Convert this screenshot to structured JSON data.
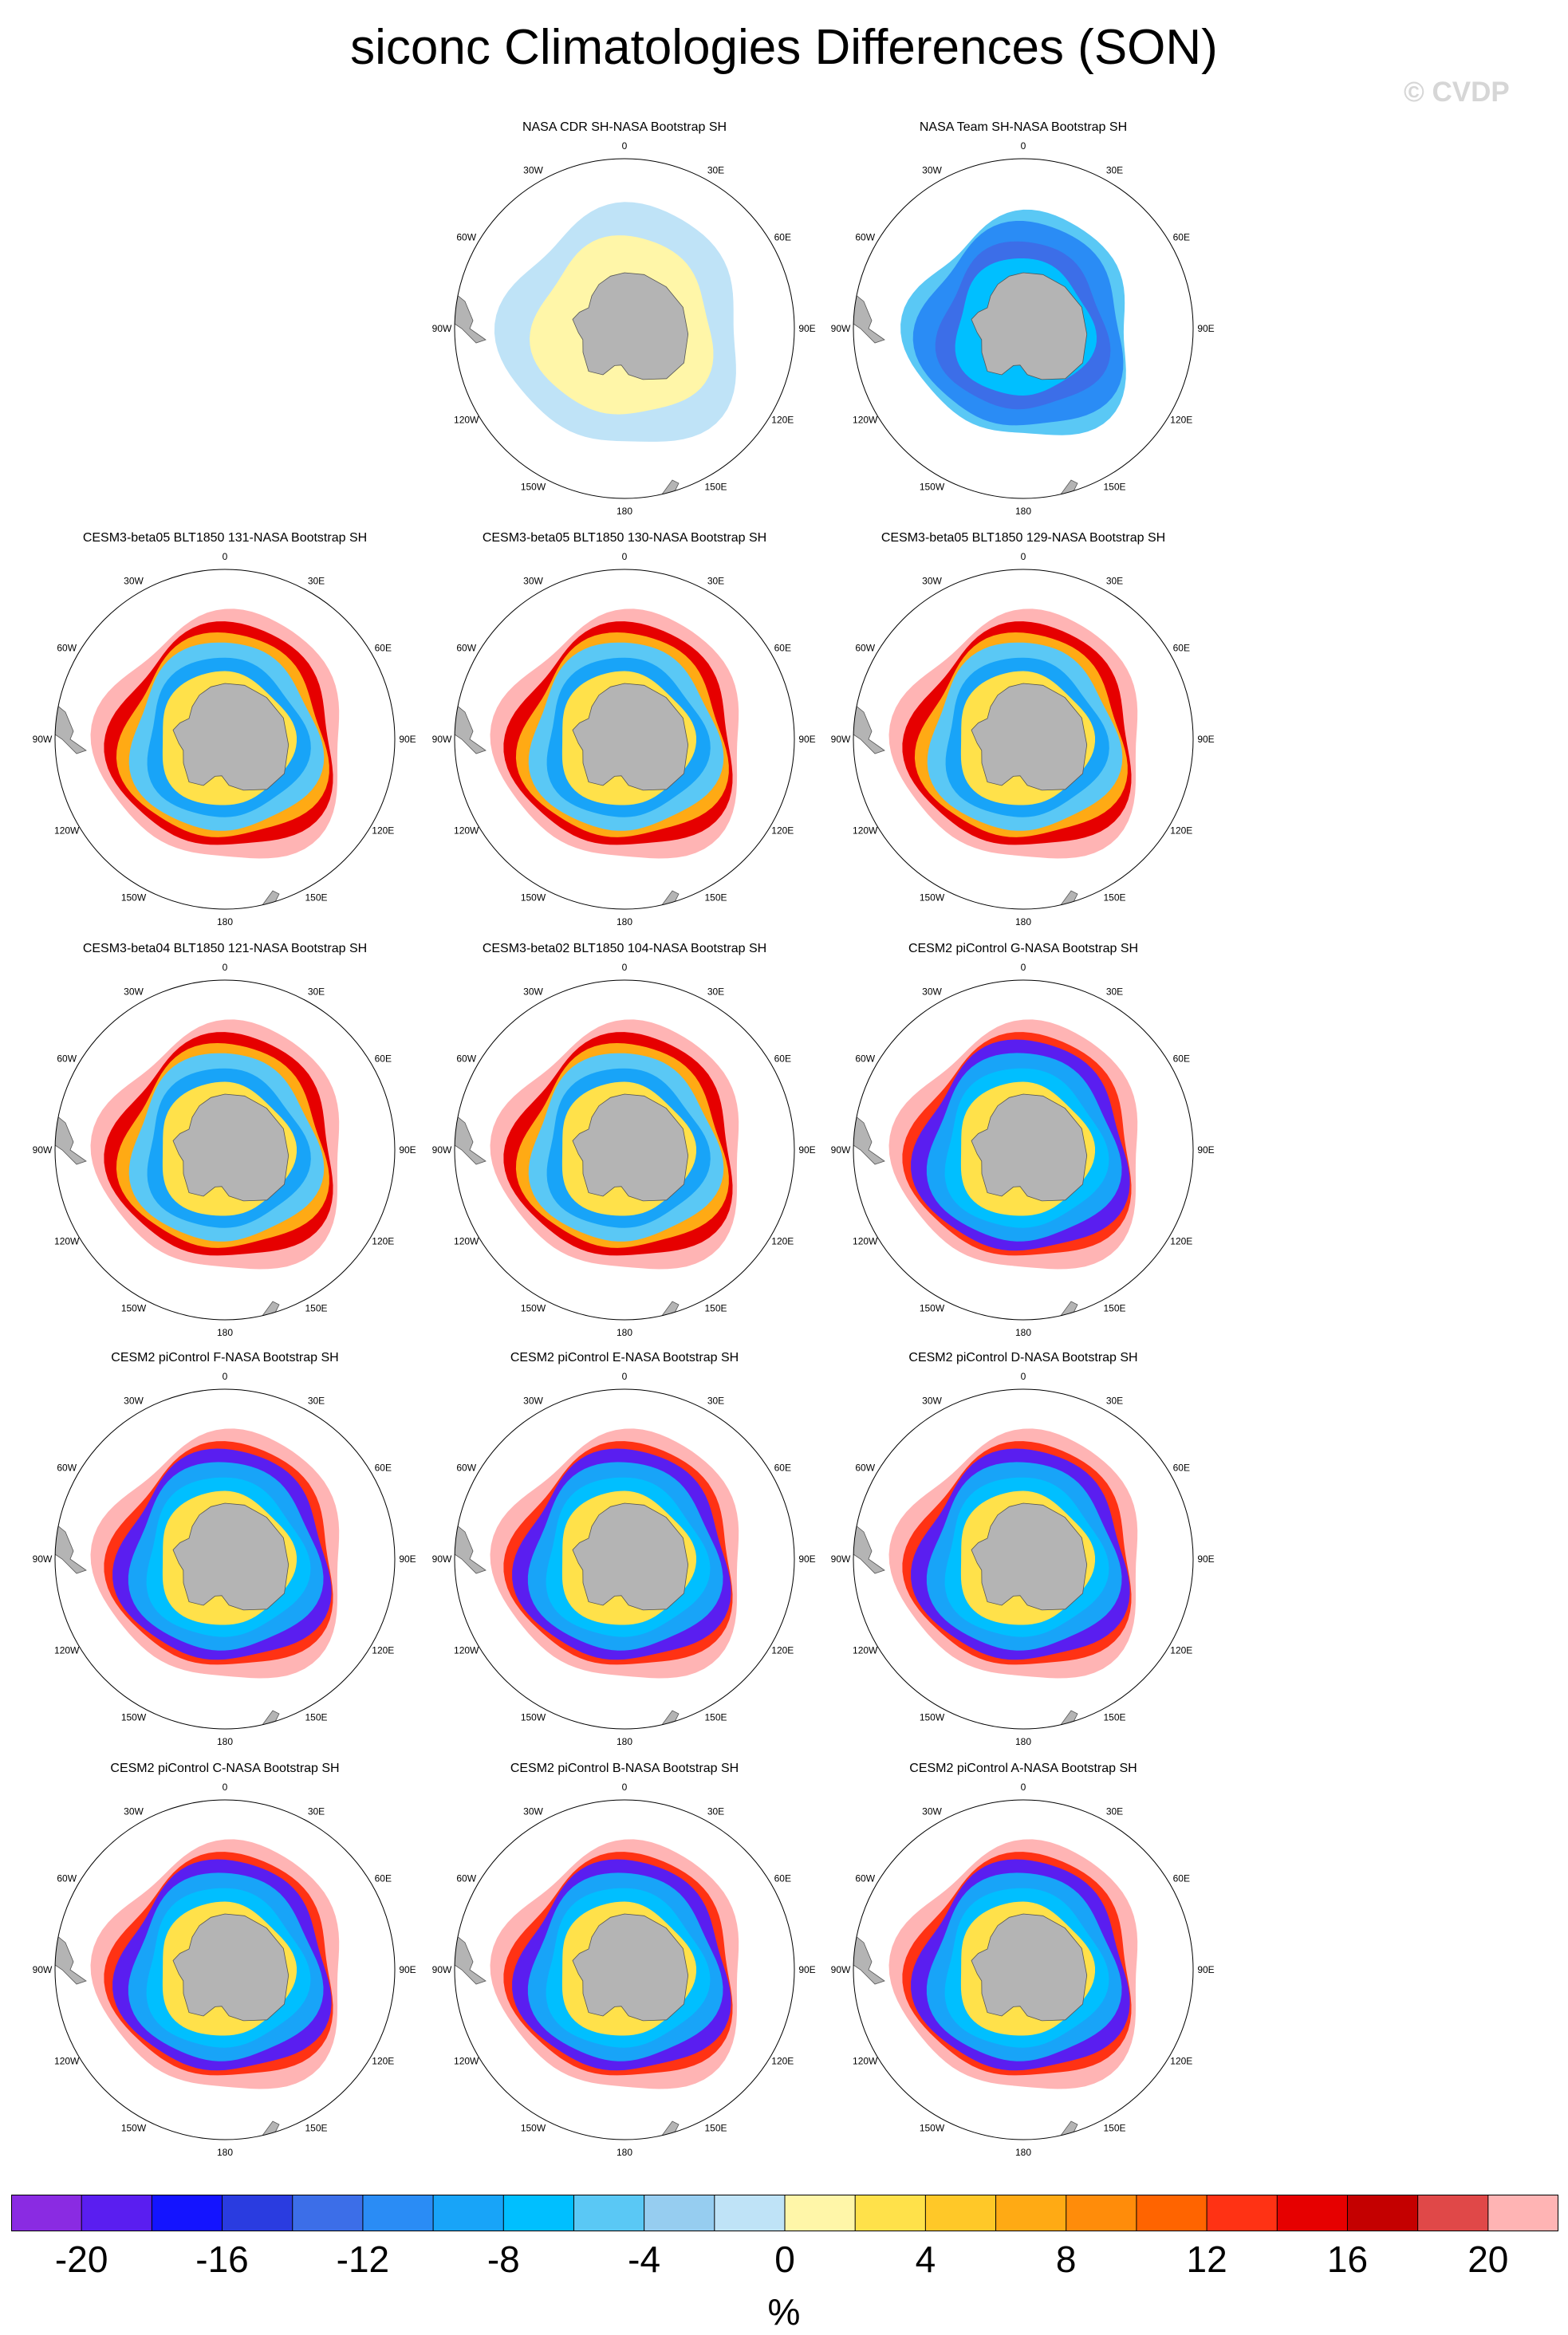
{
  "title": "siconc Climatologies Differences (SON)",
  "watermark": "© CVDP",
  "lon_labels": [
    "0",
    "30E",
    "60E",
    "90E",
    "120E",
    "150E",
    "180",
    "150W",
    "120W",
    "90W",
    "60W",
    "30W"
  ],
  "panels": [
    {
      "title": "NASA CDR SH-NASA Bootstrap SH",
      "pattern": "cdr"
    },
    {
      "title": "NASA Team SH-NASA Bootstrap SH",
      "pattern": "team"
    },
    {
      "title": "CESM3-beta05 BLT1850 131-NASA Bootstrap SH",
      "pattern": "beta"
    },
    {
      "title": "CESM3-beta05 BLT1850 130-NASA Bootstrap SH",
      "pattern": "beta"
    },
    {
      "title": "CESM3-beta05 BLT1850 129-NASA Bootstrap SH",
      "pattern": "beta"
    },
    {
      "title": "CESM3-beta04 BLT1850 121-NASA Bootstrap SH",
      "pattern": "beta"
    },
    {
      "title": "CESM3-beta02 BLT1850 104-NASA Bootstrap SH",
      "pattern": "beta"
    },
    {
      "title": "CESM2 piControl G-NASA Bootstrap SH",
      "pattern": "cesm2"
    },
    {
      "title": "CESM2 piControl F-NASA Bootstrap SH",
      "pattern": "cesm2"
    },
    {
      "title": "CESM2 piControl E-NASA Bootstrap SH",
      "pattern": "cesm2"
    },
    {
      "title": "CESM2 piControl D-NASA Bootstrap SH",
      "pattern": "cesm2"
    },
    {
      "title": "CESM2 piControl C-NASA Bootstrap SH",
      "pattern": "cesm2"
    },
    {
      "title": "CESM2 piControl B-NASA Bootstrap SH",
      "pattern": "cesm2"
    },
    {
      "title": "CESM2 piControl A-NASA Bootstrap SH",
      "pattern": "cesm2"
    }
  ],
  "colorbar": {
    "levels": [
      -20,
      -18,
      -16,
      -14,
      -12,
      -10,
      -8,
      -6,
      -4,
      -2,
      0,
      2,
      4,
      6,
      8,
      10,
      12,
      14,
      16,
      18,
      20
    ],
    "colors": [
      "#8a2be2",
      "#5a1ef0",
      "#1414ff",
      "#2a3ce0",
      "#3c6ee8",
      "#2a8cf5",
      "#18a4f8",
      "#00bfff",
      "#5ac8f5",
      "#96cdf0",
      "#bfe3f7",
      "#fff6a8",
      "#ffe14a",
      "#ffc828",
      "#ffaa14",
      "#ff8c0a",
      "#ff6400",
      "#ff3214",
      "#e60000",
      "#c40000",
      "#e04848",
      "#ffb4b4"
    ],
    "tick_labels": [
      "-20",
      "-16",
      "-12",
      "-8",
      "-4",
      "0",
      "4",
      "8",
      "12",
      "16",
      "20"
    ],
    "units": "%"
  },
  "land_color": "#b4b4b4"
}
